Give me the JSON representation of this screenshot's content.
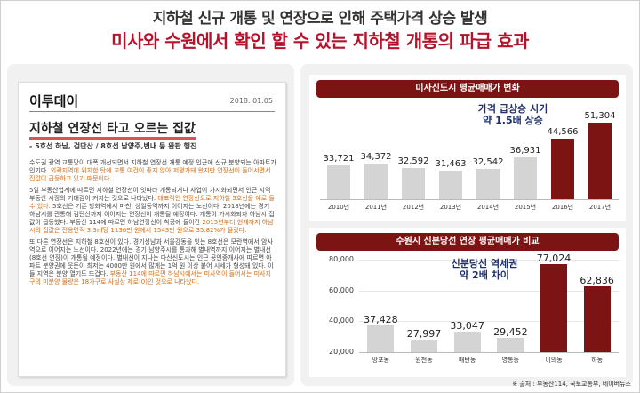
{
  "header": {
    "line1": "지하철 신규 개통 및 연장으로 인해 주택가격 상승 발생",
    "line2": "미사와 수원에서 확인 할 수 있는 지하철 개통의 파급 효과"
  },
  "article": {
    "brand": "이투데이",
    "date": "2018. 01.05",
    "title": "지하철 연장선 타고 오르는 집값",
    "subtitle": "- 5호선 하남, 검단산 / 8호선 남양주,변내 등 완판 행진",
    "paragraphs": [
      [
        {
          "t": "수도권 광역 교통망이 대폭 개선되면서 지하철 연장선 개통 예정 인근에 신규 분양되는 아파트가 인기다. ",
          "h": false
        },
        {
          "t": "외곽지역에 위치한 탓에 교통 여건이 좋지 않아 저평가돼 왔지만 연장선이 들어서면서 집값이 급등하고 있기 때문이다.",
          "h": true
        }
      ],
      [
        {
          "t": "5일 부동산업계에 따르면 지하철 연장선이 잇따라 개통되거나 사업이 가시화되면서 인근 지역 부동산 시장의 기대감이 커지는 것으로 나타났다. ",
          "h": false
        },
        {
          "t": "대표적인 연장선으로 지하철 5호선을 예로 들 수 있다.",
          "h": true
        },
        {
          "t": " 5호선은 기존 방화역에서 마천, 상일동역까지 이어지는 노선이다. 2018년에는 경기 하남시를 관통해 검단산까지 이어지는 연장선이 개통될 예정이다. 개통이 가시화되자 하남시 집값이 급등했다. 부동산 114에 따르면 하남연장선이 착공에 들어간 ",
          "h": false
        },
        {
          "t": "2015년부터 현재까지 하남시의 집값은 전용면적 3.3㎡당 1136만 원에서 1543만 원으로 35.82%가 올랐다.",
          "h": true
        }
      ],
      [
        {
          "t": "또 다른 연장선은 지하철 8호선이 있다. 경기성남과 서울강동을 잇는 8호선은 모란역에서 암사역으로 이어지는 노선이다. 2022년에는 경기 남양주시를 통과해 별내역까지 이어지는 별내선(8호선 연장)이 개통될 예정이다. 별내선이 지나는 다산신도시는 인근 공인중개사에 따르면 아파트 분양권에 웃돈이 최저는 4000만 원에서 많게는 1억 원 이상 붙어 시세가 형성돼 있다. 이들 지역은 분양 열기도 뜨겁다. ",
          "h": false
        },
        {
          "t": "부동산 114에 따르면 하남시에서는 미사역이 들어서는 미사지구의 미분양 물량은 18가구로 사실상 제로(0)인 것으로 나타났다.",
          "h": true
        }
      ]
    ]
  },
  "chart_data": [
    {
      "type": "bar",
      "title": "미사신도시 평균매매가 변화",
      "categories": [
        "2010년",
        "2011년",
        "2012년",
        "2013년",
        "2014년",
        "2015년",
        "2016년",
        "2017년"
      ],
      "values": [
        33721,
        34372,
        32592,
        31463,
        32542,
        36931,
        44566,
        51304
      ],
      "value_labels": [
        "33,721",
        "34,372",
        "32,592",
        "31,463",
        "32,542",
        "36,931",
        "44,566",
        "51,304"
      ],
      "highlight_indices": [
        6,
        7
      ],
      "ylim": [
        20000,
        52000
      ],
      "annotation": [
        "가격 급상승 시기",
        "약 1.5배 상승"
      ],
      "colors": {
        "normal": "#d4d4d4",
        "highlight": "#7c1414"
      }
    },
    {
      "type": "bar",
      "title": "수원시 신분당선 연장 평균매매가 비교",
      "categories": [
        "망포동",
        "원천동",
        "매탄동",
        "영통동",
        "이의동",
        "하동"
      ],
      "values": [
        37428,
        27997,
        33047,
        29452,
        77024,
        62836
      ],
      "value_labels": [
        "37,428",
        "27,997",
        "33,047",
        "29,452",
        "77,024",
        "62,836"
      ],
      "highlight_indices": [
        4,
        5
      ],
      "ylim": [
        20000,
        80000
      ],
      "yticks": [
        20000,
        40000,
        60000,
        80000
      ],
      "ytick_labels": [
        "20,000",
        "40,000",
        "60,000",
        "80,000"
      ],
      "annotation": [
        "신분당선 역세권",
        "약 2배 차이"
      ],
      "colors": {
        "normal": "#d4d4d4",
        "highlight": "#7c1414"
      }
    }
  ],
  "source": "※ 출처 : 부동산114, 국토교통부, 네이버뉴스"
}
